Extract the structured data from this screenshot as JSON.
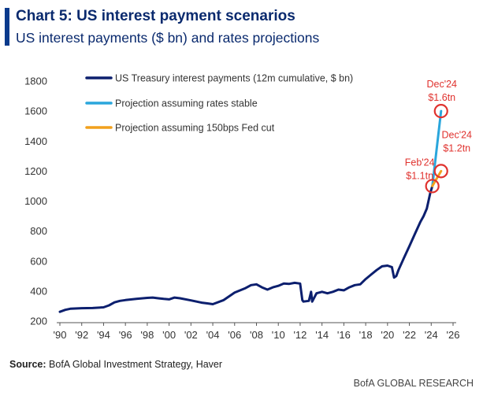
{
  "header": {
    "title": "Chart 5: US interest payment scenarios",
    "subtitle": "US interest payments ($ bn) and rates projections"
  },
  "footer": {
    "source_label": "Source:",
    "source_text": "BofA Global Investment Strategy, Haver",
    "credit": "BofA GLOBAL RESEARCH"
  },
  "colors": {
    "actual": "#0c1f6e",
    "stable": "#2aa6dc",
    "cut": "#f2a01c",
    "annotation": "#e0322e"
  },
  "chart_data": {
    "type": "line",
    "ylim": [
      200,
      1800
    ],
    "yticks": [
      200,
      400,
      600,
      800,
      1000,
      1200,
      1400,
      1600,
      1800
    ],
    "xlim": [
      1990,
      2026
    ],
    "xticks": [
      1990,
      1992,
      1994,
      1996,
      1998,
      2000,
      2002,
      2004,
      2006,
      2008,
      2010,
      2012,
      2014,
      2016,
      2018,
      2020,
      2022,
      2024,
      2026
    ],
    "xtick_labels": [
      "'90",
      "'92",
      "'94",
      "'96",
      "'98",
      "'00",
      "'02",
      "'04",
      "'06",
      "'08",
      "'10",
      "'12",
      "'14",
      "'16",
      "'18",
      "'20",
      "'22",
      "'24",
      "'26"
    ],
    "legend": [
      "US Treasury interest payments (12m cumulative, $ bn)",
      "Projection assuming rates stable",
      "Projection assuming 150bps Fed cut"
    ],
    "series": [
      {
        "name": "US Treasury interest payments (12m cumulative, $ bn)",
        "x": [
          1990.0,
          1990.5,
          1991.0,
          1992.0,
          1993.0,
          1994.0,
          1994.5,
          1995.0,
          1995.5,
          1996.0,
          1997.0,
          1998.0,
          1998.5,
          1999.0,
          1999.5,
          2000.0,
          2000.5,
          2001.0,
          2002.0,
          2003.0,
          2003.5,
          2004.0,
          2005.0,
          2006.0,
          2007.0,
          2007.5,
          2008.0,
          2008.5,
          2009.0,
          2009.5,
          2010.0,
          2010.5,
          2011.0,
          2011.5,
          2012.0,
          2012.2,
          2012.3,
          2012.8,
          2013.0,
          2013.1,
          2013.5,
          2014.0,
          2014.5,
          2015.0,
          2015.5,
          2016.0,
          2016.5,
          2017.0,
          2017.5,
          2018.0,
          2018.5,
          2019.0,
          2019.5,
          2020.0,
          2020.4,
          2020.6,
          2020.8,
          2021.0,
          2021.5,
          2022.0,
          2022.5,
          2023.0,
          2023.3,
          2023.6,
          2023.9,
          2024.1
        ],
        "y": [
          262,
          275,
          283,
          286,
          287,
          292,
          305,
          325,
          335,
          340,
          348,
          355,
          357,
          352,
          348,
          345,
          357,
          352,
          338,
          323,
          318,
          313,
          340,
          390,
          420,
          440,
          445,
          425,
          410,
          425,
          435,
          450,
          448,
          455,
          450,
          340,
          330,
          335,
          395,
          330,
          385,
          395,
          385,
          395,
          410,
          405,
          425,
          440,
          445,
          480,
          510,
          540,
          565,
          570,
          560,
          490,
          500,
          540,
          620,
          700,
          780,
          860,
          900,
          950,
          1050,
          1100
        ]
      },
      {
        "name": "Projection assuming rates stable",
        "x": [
          2024.1,
          2024.9
        ],
        "y": [
          1100,
          1600
        ]
      },
      {
        "name": "Projection assuming 150bps Fed cut",
        "x": [
          2024.1,
          2024.9
        ],
        "y": [
          1100,
          1200
        ]
      }
    ],
    "annotations": [
      {
        "x": 2024.9,
        "y": 1600,
        "line1": "Dec'24",
        "line2": "$1.6tn",
        "pos": "above"
      },
      {
        "x": 2024.9,
        "y": 1200,
        "line1": "Dec'24",
        "line2": "$1.2tn",
        "pos": "right-above"
      },
      {
        "x": 2024.1,
        "y": 1100,
        "line1": "Feb'24",
        "line2": "$1.1tn",
        "pos": "left-above"
      }
    ]
  }
}
